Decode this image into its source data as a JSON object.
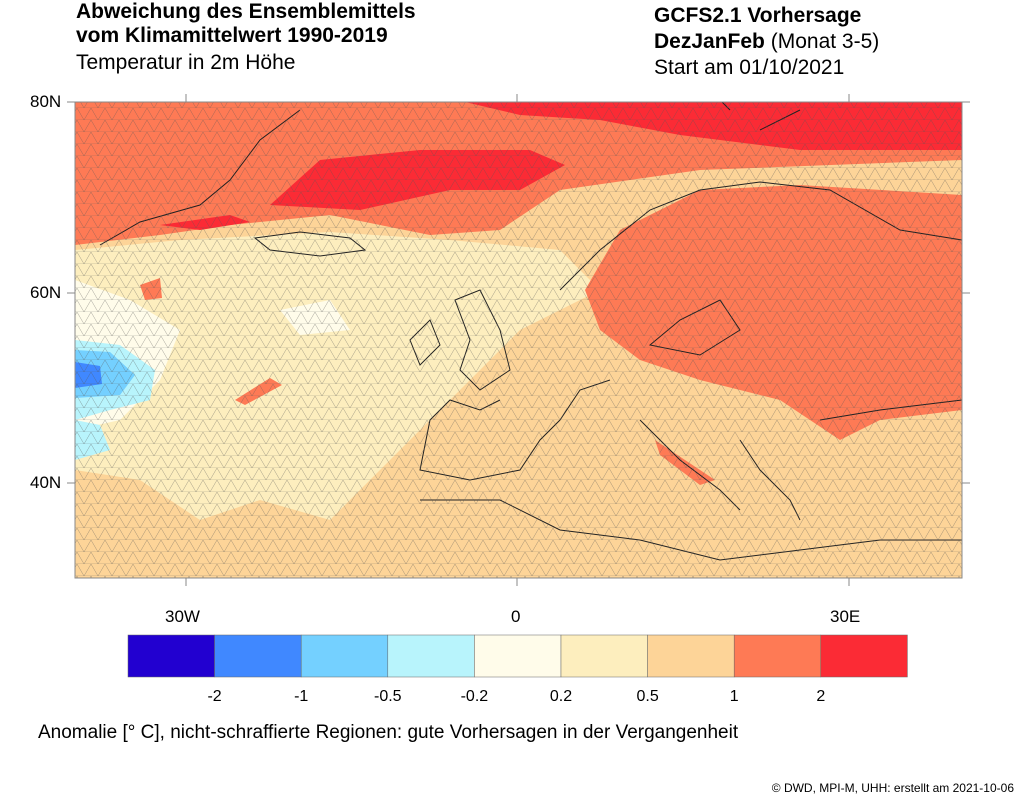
{
  "header": {
    "title_line1": "Abweichung des Ensemblemittels",
    "title_line2": "vom Klimamittelwert 1990-2019",
    "subtitle": "Temperatur in 2m Höhe",
    "model": "GCFS2.1 Vorhersage",
    "season": "DezJanFeb",
    "months": "(Monat 3-5)",
    "start": "Start am 01/10/2021"
  },
  "map": {
    "lat_labels": [
      "80N",
      "60N",
      "40N"
    ],
    "lon_labels": [
      "30W",
      "0",
      "30E"
    ],
    "extent": {
      "lon": [
        -40,
        40
      ],
      "lat": [
        30,
        80
      ]
    },
    "hatching": "nicht-schraffierte Regionen: gute Vorhersagen in der Vergangenheit"
  },
  "colorbar": {
    "levels": [
      "-2",
      "-1",
      "-0.5",
      "-0.2",
      "0.2",
      "0.5",
      "1",
      "2"
    ],
    "colors": [
      "#2200d0",
      "#4088ff",
      "#74d0ff",
      "#b8f4fc",
      "#fffcea",
      "#fdeebe",
      "#fdd498",
      "#fe7a55",
      "#fb2b35"
    ]
  },
  "caption": "Anomalie [° C], nicht-schraffierte Regionen: gute Vorhersagen in der Vergangenheit",
  "credit": "©  DWD, MPI-M, UHH: erstellt am 2021-10-06"
}
